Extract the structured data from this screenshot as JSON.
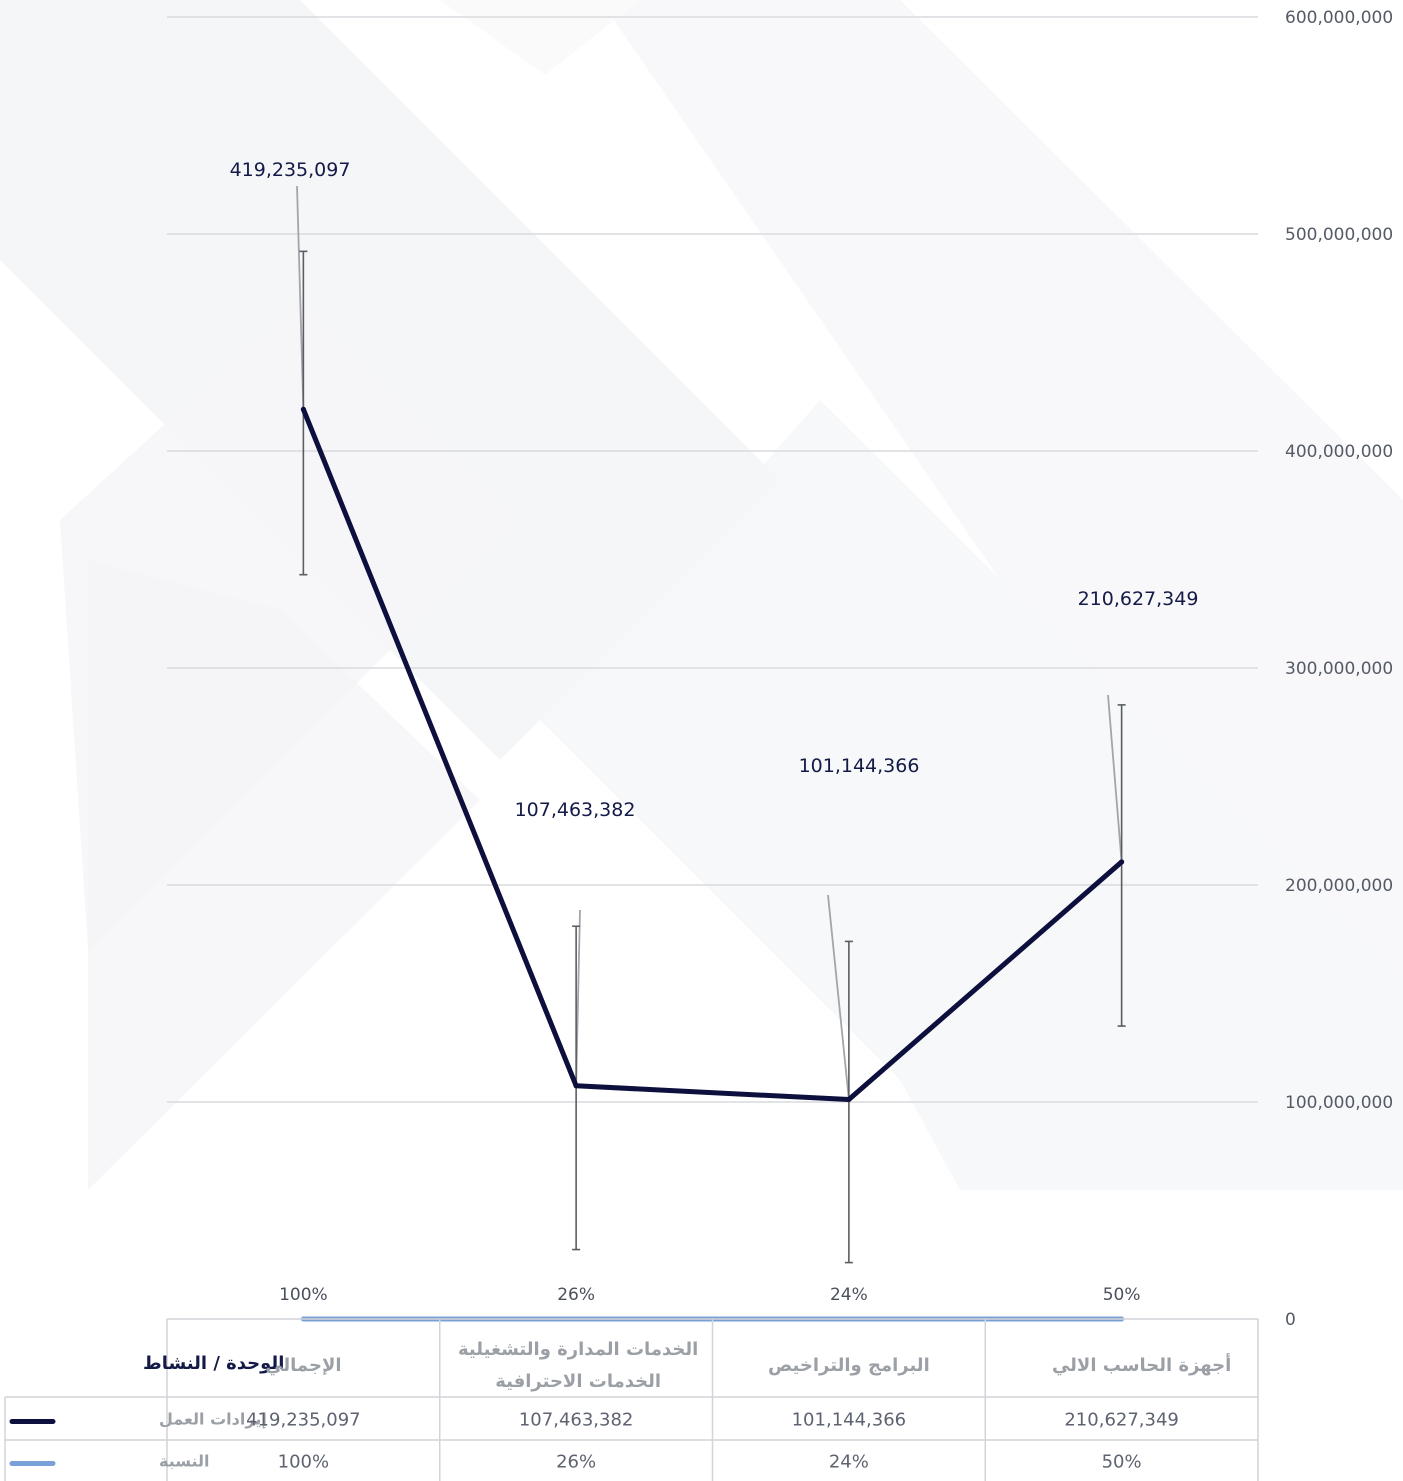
{
  "chart_data": {
    "type": "line",
    "categories": [
      "الإجمالي",
      "الخدمات المدارة والتشغيلية الخدمات الاحترافية",
      "البرامج والتراخيص",
      "أجهزة الحاسب الالي"
    ],
    "category_lines": [
      [
        "الإجمالي"
      ],
      [
        "الخدمات المدارة والتشغيلية",
        "الخدمات الاحترافية"
      ],
      [
        "البرامج والتراخيص"
      ],
      [
        "أجهزة الحاسب الالي"
      ]
    ],
    "series": [
      {
        "name": "إيرادات العمل",
        "values": [
          419235097,
          107463382,
          101144366,
          210627349
        ],
        "labels": [
          "419,235,097",
          "107,463,382",
          "101,144,366",
          "210,627,349"
        ],
        "color": "#0d0f3d"
      },
      {
        "name": "النسبة",
        "values": [
          100,
          26,
          24,
          50
        ],
        "labels": [
          "100%",
          "26%",
          "24%",
          "50%"
        ],
        "color": "#7aa0d8"
      }
    ],
    "error_bars": [
      {
        "low": 343000000,
        "high": 492000000
      },
      {
        "low": 32000000,
        "high": 181000000
      },
      {
        "low": 26000000,
        "high": 174000000
      },
      {
        "low": 135000000,
        "high": 283000000
      }
    ],
    "y_axis": {
      "ylim": [
        0,
        600000000
      ],
      "ticks": [
        0,
        100000000,
        200000000,
        300000000,
        400000000,
        500000000,
        600000000
      ],
      "tick_labels": [
        "0",
        "100,000,000",
        "200,000,000",
        "300,000,000",
        "400,000,000",
        "500,000,000",
        "600,000,000"
      ],
      "position": "right"
    },
    "grid": true,
    "table": {
      "header": "الوحدة / النشاط",
      "rows": [
        {
          "name": "إيرادات العمل",
          "cells": [
            "419,235,097",
            "107,463,382",
            "101,144,366",
            "210,627,349"
          ],
          "color": "#0d0f3d"
        },
        {
          "name": "النسبة",
          "cells": [
            "100%",
            "26%",
            "24%",
            "50%"
          ],
          "color": "#7aa0d8"
        }
      ]
    }
  }
}
